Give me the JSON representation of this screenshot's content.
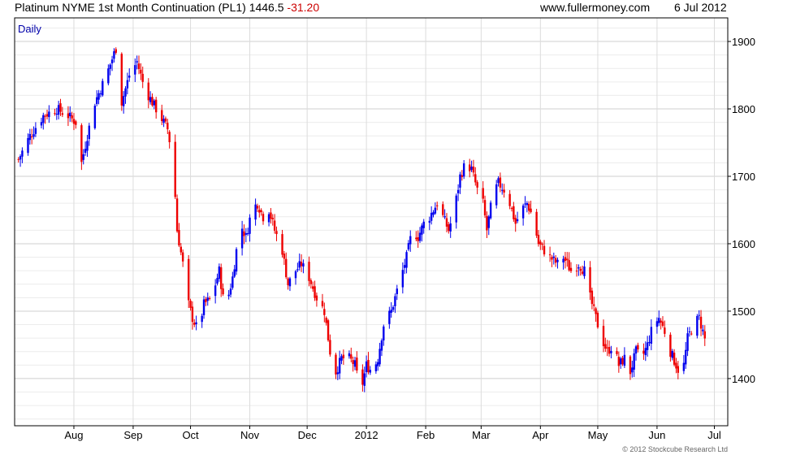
{
  "header": {
    "title": "Platinum NYME 1st Month Continuation (PL1)",
    "last": "1446.5",
    "change": "-31.20",
    "site": "www.fullermoney.com",
    "date": "6 Jul 2012"
  },
  "copyright": "© 2012 Stockcube Research Ltd",
  "colors": {
    "up": "#0000ee",
    "down": "#ee0000",
    "grid": "#dcdcdc",
    "frame": "#000000",
    "label": "#0000aa"
  },
  "chart_data": {
    "type": "candlestick",
    "period_label": "Daily",
    "ylim": [
      1330,
      1935
    ],
    "y_ticks": [
      1400,
      1500,
      1600,
      1700,
      1800,
      1900
    ],
    "x_ticks": [
      {
        "label": "Aug",
        "day": 31
      },
      {
        "label": "Sep",
        "day": 62
      },
      {
        "label": "Oct",
        "day": 92
      },
      {
        "label": "Nov",
        "day": 123
      },
      {
        "label": "Dec",
        "day": 153
      },
      {
        "label": "2012",
        "day": 184
      },
      {
        "label": "Feb",
        "day": 215
      },
      {
        "label": "Mar",
        "day": 244
      },
      {
        "label": "Apr",
        "day": 275
      },
      {
        "label": "May",
        "day": 305
      },
      {
        "label": "Jun",
        "day": 336
      },
      {
        "label": "Jul",
        "day": 366
      }
    ],
    "x_range": [
      0,
      373
    ],
    "waypoints": [
      [
        2,
        1725
      ],
      [
        8,
        1760
      ],
      [
        15,
        1790
      ],
      [
        22,
        1800
      ],
      [
        28,
        1790
      ],
      [
        32,
        1780
      ],
      [
        35,
        1720
      ],
      [
        38,
        1760
      ],
      [
        42,
        1810
      ],
      [
        48,
        1850
      ],
      [
        53,
        1890
      ],
      [
        56,
        1810
      ],
      [
        60,
        1850
      ],
      [
        64,
        1870
      ],
      [
        68,
        1830
      ],
      [
        72,
        1810
      ],
      [
        76,
        1790
      ],
      [
        80,
        1770
      ],
      [
        83,
        1720
      ],
      [
        85,
        1620
      ],
      [
        88,
        1570
      ],
      [
        90,
        1520
      ],
      [
        93,
        1490
      ],
      [
        96,
        1470
      ],
      [
        99,
        1510
      ],
      [
        103,
        1520
      ],
      [
        107,
        1560
      ],
      [
        110,
        1500
      ],
      [
        114,
        1550
      ],
      [
        118,
        1630
      ],
      [
        121,
        1610
      ],
      [
        124,
        1650
      ],
      [
        127,
        1660
      ],
      [
        130,
        1640
      ],
      [
        133,
        1650
      ],
      [
        136,
        1620
      ],
      [
        140,
        1590
      ],
      [
        143,
        1540
      ],
      [
        147,
        1560
      ],
      [
        150,
        1570
      ],
      [
        154,
        1550
      ],
      [
        158,
        1520
      ],
      [
        162,
        1500
      ],
      [
        165,
        1440
      ],
      [
        168,
        1410
      ],
      [
        171,
        1430
      ],
      [
        175,
        1430
      ],
      [
        178,
        1420
      ],
      [
        181,
        1380
      ],
      [
        184,
        1420
      ],
      [
        187,
        1410
      ],
      [
        190,
        1430
      ],
      [
        193,
        1480
      ],
      [
        197,
        1500
      ],
      [
        201,
        1540
      ],
      [
        205,
        1580
      ],
      [
        208,
        1620
      ],
      [
        211,
        1610
      ],
      [
        214,
        1630
      ],
      [
        217,
        1640
      ],
      [
        221,
        1660
      ],
      [
        224,
        1640
      ],
      [
        227,
        1620
      ],
      [
        230,
        1650
      ],
      [
        233,
        1700
      ],
      [
        236,
        1720
      ],
      [
        239,
        1710
      ],
      [
        242,
        1680
      ],
      [
        245,
        1660
      ],
      [
        247,
        1620
      ],
      [
        250,
        1670
      ],
      [
        253,
        1690
      ],
      [
        256,
        1680
      ],
      [
        259,
        1660
      ],
      [
        262,
        1630
      ],
      [
        265,
        1650
      ],
      [
        268,
        1660
      ],
      [
        271,
        1640
      ],
      [
        274,
        1600
      ],
      [
        277,
        1590
      ],
      [
        280,
        1580
      ],
      [
        284,
        1570
      ],
      [
        287,
        1580
      ],
      [
        291,
        1560
      ],
      [
        295,
        1570
      ],
      [
        298,
        1560
      ],
      [
        301,
        1520
      ],
      [
        304,
        1490
      ],
      [
        307,
        1460
      ],
      [
        310,
        1440
      ],
      [
        313,
        1450
      ],
      [
        316,
        1420
      ],
      [
        319,
        1430
      ],
      [
        322,
        1410
      ],
      [
        325,
        1440
      ],
      [
        328,
        1430
      ],
      [
        331,
        1450
      ],
      [
        334,
        1480
      ],
      [
        337,
        1490
      ],
      [
        340,
        1470
      ],
      [
        343,
        1440
      ],
      [
        346,
        1420
      ],
      [
        349,
        1400
      ],
      [
        352,
        1460
      ],
      [
        355,
        1480
      ],
      [
        358,
        1490
      ],
      [
        360,
        1470
      ],
      [
        362,
        1446.5
      ]
    ]
  }
}
